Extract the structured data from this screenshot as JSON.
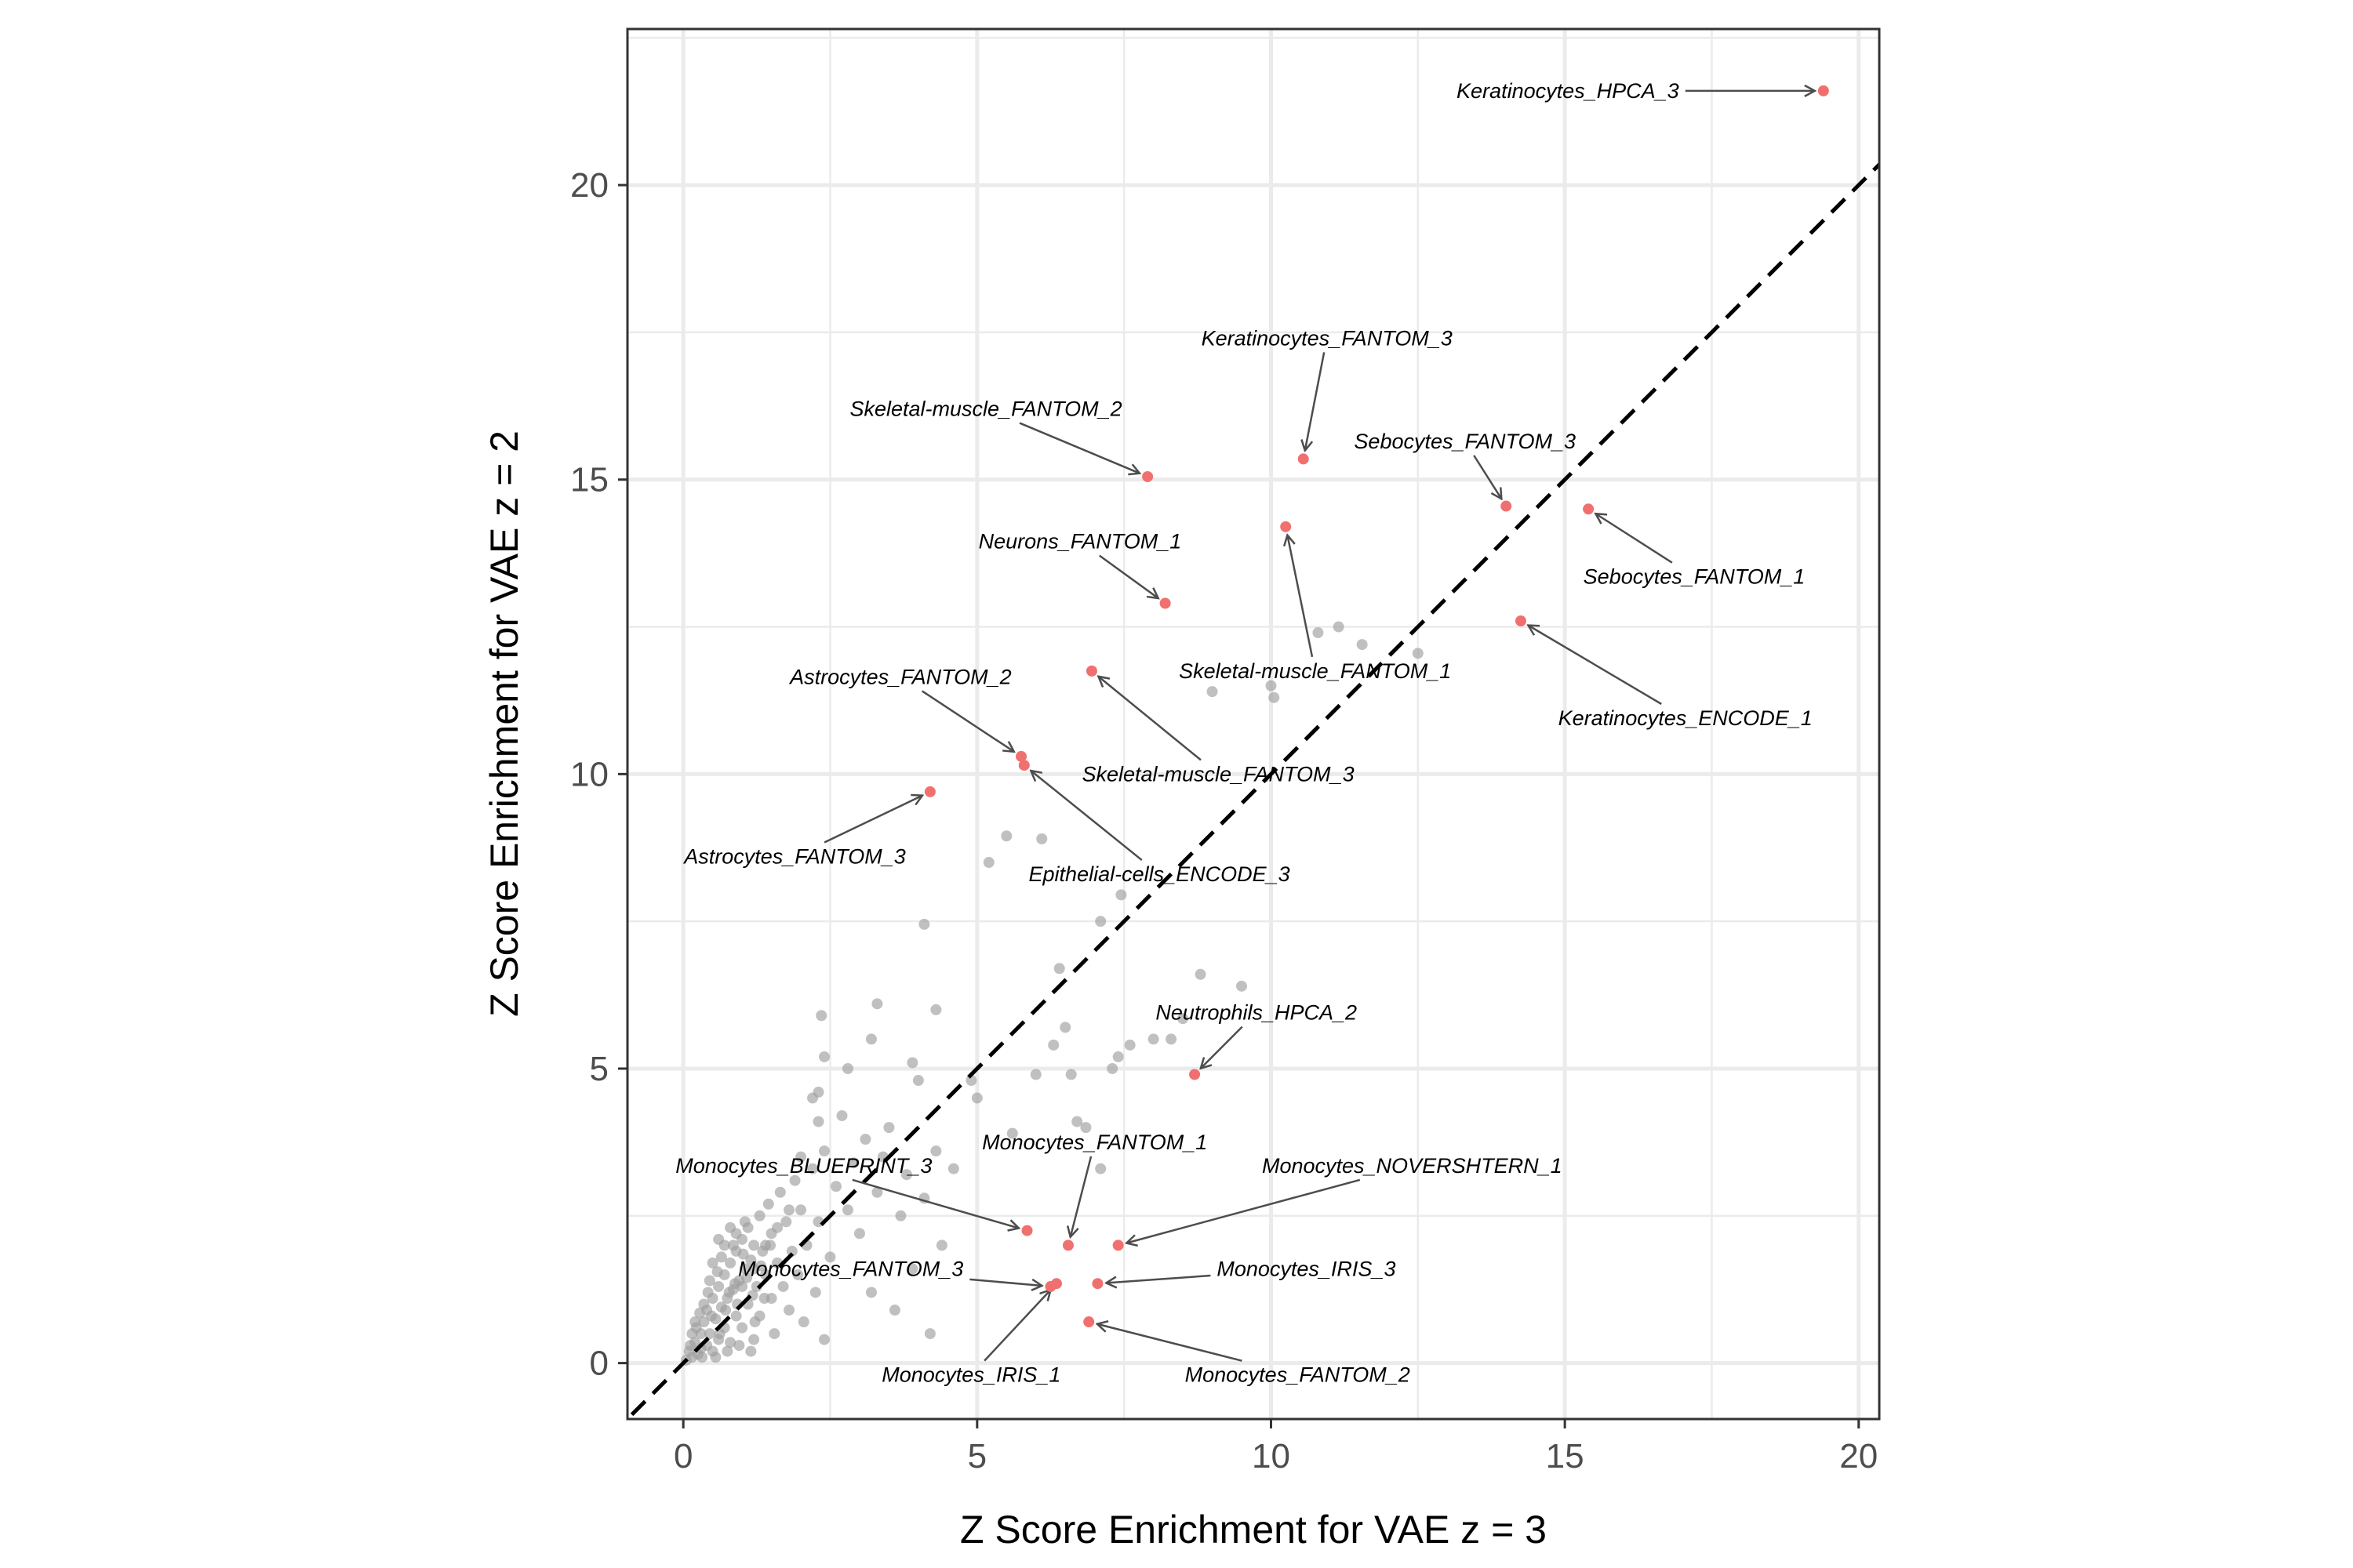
{
  "chart_data": {
    "type": "scatter",
    "title": "",
    "xlabel": "Z Score Enrichment for VAE z = 3",
    "ylabel": "Z Score Enrichment for VAE z = 2",
    "xlim": [
      -0.95,
      20.35
    ],
    "ylim": [
      -0.95,
      22.65
    ],
    "xticks": [
      0,
      5,
      10,
      15,
      20
    ],
    "yticks": [
      0,
      5,
      10,
      15,
      20
    ],
    "grid": true,
    "reference_line": {
      "slope": 1,
      "intercept": 0,
      "style": "dashed",
      "color": "#000000"
    },
    "colors": {
      "background_points": "#9e9e9e",
      "highlight_points": "#f07070",
      "arrow": "#4d4d4d",
      "panel_border": "#333333",
      "grid": "#ebebeb"
    },
    "labeled_points": [
      {
        "label": "Keratinocytes_HPCA_3",
        "x": 19.4,
        "y": 21.6,
        "lx": 15.05,
        "ly": 21.6
      },
      {
        "label": "Keratinocytes_FANTOM_3",
        "x": 10.55,
        "y": 15.35,
        "lx": 10.95,
        "ly": 17.4
      },
      {
        "label": "Skeletal-muscle_FANTOM_2",
        "x": 7.9,
        "y": 15.05,
        "lx": 5.15,
        "ly": 16.2
      },
      {
        "label": "Sebocytes_FANTOM_3",
        "x": 14.0,
        "y": 14.55,
        "lx": 13.3,
        "ly": 15.65
      },
      {
        "label": "Sebocytes_FANTOM_1",
        "x": 15.4,
        "y": 14.5,
        "lx": 17.2,
        "ly": 13.35
      },
      {
        "label": "Skeletal-muscle_FANTOM_1",
        "x": 10.25,
        "y": 14.2,
        "lx": 10.75,
        "ly": 11.75
      },
      {
        "label": "Neurons_FANTOM_1",
        "x": 8.2,
        "y": 12.9,
        "lx": 6.75,
        "ly": 13.95
      },
      {
        "label": "Keratinocytes_ENCODE_1",
        "x": 14.25,
        "y": 12.6,
        "lx": 17.05,
        "ly": 10.95
      },
      {
        "label": "Skeletal-muscle_FANTOM_3",
        "x": 6.95,
        "y": 11.75,
        "lx": 9.1,
        "ly": 10.0
      },
      {
        "label": "Astrocytes_FANTOM_2",
        "x": 5.75,
        "y": 10.3,
        "lx": 3.7,
        "ly": 11.65
      },
      {
        "label": "Epithelial-cells_ENCODE_3",
        "x": 5.8,
        "y": 10.15,
        "lx": 8.1,
        "ly": 8.3
      },
      {
        "label": "Astrocytes_FANTOM_3",
        "x": 4.2,
        "y": 9.7,
        "lx": 1.9,
        "ly": 8.6
      },
      {
        "label": "Neutrophils_HPCA_2",
        "x": 8.7,
        "y": 4.9,
        "lx": 9.75,
        "ly": 5.95
      },
      {
        "label": "Monocytes_BLUEPRINT_3",
        "x": 5.85,
        "y": 2.25,
        "lx": 2.05,
        "ly": 3.35
      },
      {
        "label": "Monocytes_FANTOM_1",
        "x": 6.55,
        "y": 2.0,
        "lx": 7.0,
        "ly": 3.75
      },
      {
        "label": "Monocytes_NOVERSHTERN_1",
        "x": 7.4,
        "y": 2.0,
        "lx": 12.4,
        "ly": 3.35
      },
      {
        "label": "Monocytes_FANTOM_3",
        "x": 6.25,
        "y": 1.3,
        "lx": 2.85,
        "ly": 1.6
      },
      {
        "label": "Monocytes_IRIS_3",
        "x": 7.05,
        "y": 1.35,
        "lx": 10.6,
        "ly": 1.6
      },
      {
        "label": "Monocytes_IRIS_1",
        "x": 6.35,
        "y": 1.35,
        "lx": 4.9,
        "ly": -0.2
      },
      {
        "label": "Monocytes_FANTOM_2",
        "x": 6.9,
        "y": 0.7,
        "lx": 10.45,
        "ly": -0.2
      }
    ],
    "background_points": [
      [
        0.05,
        0.05
      ],
      [
        0.1,
        0.2
      ],
      [
        0.15,
        0.1
      ],
      [
        0.2,
        0.35
      ],
      [
        0.25,
        0.15
      ],
      [
        0.3,
        0.5
      ],
      [
        0.3,
        0.25
      ],
      [
        0.35,
        0.7
      ],
      [
        0.4,
        0.3
      ],
      [
        0.4,
        0.9
      ],
      [
        0.45,
        0.5
      ],
      [
        0.5,
        1.1
      ],
      [
        0.5,
        0.2
      ],
      [
        0.55,
        0.75
      ],
      [
        0.6,
        1.3
      ],
      [
        0.6,
        0.4
      ],
      [
        0.65,
        0.95
      ],
      [
        0.7,
        1.5
      ],
      [
        0.7,
        0.6
      ],
      [
        0.75,
        1.1
      ],
      [
        0.8,
        1.7
      ],
      [
        0.8,
        0.35
      ],
      [
        0.85,
        1.25
      ],
      [
        0.9,
        1.9
      ],
      [
        0.9,
        0.8
      ],
      [
        0.95,
        1.4
      ],
      [
        1.0,
        2.1
      ],
      [
        1.0,
        0.6
      ],
      [
        1.05,
        1.6
      ],
      [
        1.1,
        2.3
      ],
      [
        1.1,
        1.0
      ],
      [
        1.15,
        1.75
      ],
      [
        1.2,
        0.4
      ],
      [
        1.2,
        2.0
      ],
      [
        1.25,
        1.3
      ],
      [
        1.3,
        2.5
      ],
      [
        1.3,
        0.8
      ],
      [
        1.35,
        1.9
      ],
      [
        1.4,
        1.5
      ],
      [
        1.45,
        2.7
      ],
      [
        1.5,
        1.1
      ],
      [
        1.5,
        2.2
      ],
      [
        1.55,
        0.5
      ],
      [
        1.6,
        1.7
      ],
      [
        1.65,
        2.9
      ],
      [
        1.7,
        1.3
      ],
      [
        1.75,
        2.4
      ],
      [
        1.8,
        0.9
      ],
      [
        1.85,
        1.9
      ],
      [
        1.9,
        3.1
      ],
      [
        1.95,
        1.5
      ],
      [
        2.0,
        2.6
      ],
      [
        2.05,
        0.7
      ],
      [
        2.1,
        2.0
      ],
      [
        2.2,
        3.3
      ],
      [
        2.25,
        1.2
      ],
      [
        2.3,
        2.4
      ],
      [
        2.4,
        0.4
      ],
      [
        2.4,
        3.6
      ],
      [
        2.5,
        1.8
      ],
      [
        0.2,
        0.7
      ],
      [
        0.35,
        1.0
      ],
      [
        0.45,
        1.4
      ],
      [
        0.55,
        0.1
      ],
      [
        0.65,
        1.8
      ],
      [
        0.75,
        0.2
      ],
      [
        0.85,
        2.0
      ],
      [
        0.95,
        0.3
      ],
      [
        1.05,
        2.4
      ],
      [
        1.15,
        0.2
      ],
      [
        0.15,
        0.5
      ],
      [
        0.28,
        0.85
      ],
      [
        0.42,
        1.2
      ],
      [
        0.58,
        1.55
      ],
      [
        0.72,
        0.9
      ],
      [
        0.88,
        1.35
      ],
      [
        1.02,
        1.85
      ],
      [
        1.18,
        1.15
      ],
      [
        1.32,
        1.65
      ],
      [
        1.48,
        2.0
      ],
      [
        0.12,
        0.3
      ],
      [
        0.22,
        0.6
      ],
      [
        0.32,
        0.1
      ],
      [
        0.48,
        0.8
      ],
      [
        0.62,
        0.5
      ],
      [
        0.78,
        1.2
      ],
      [
        0.92,
        1.0
      ],
      [
        1.08,
        1.45
      ],
      [
        1.22,
        0.7
      ],
      [
        1.38,
        1.1
      ],
      [
        0.6,
        2.1
      ],
      [
        0.8,
        2.3
      ],
      [
        1.0,
        1.3
      ],
      [
        1.2,
        1.6
      ],
      [
        1.4,
        2.0
      ],
      [
        1.6,
        2.3
      ],
      [
        1.8,
        2.6
      ],
      [
        0.5,
        1.7
      ],
      [
        0.7,
        2.0
      ],
      [
        0.9,
        2.2
      ],
      [
        2.3,
        4.1
      ],
      [
        2.0,
        3.5
      ],
      [
        2.6,
        3.0
      ],
      [
        2.8,
        2.6
      ],
      [
        2.9,
        3.4
      ],
      [
        3.0,
        2.2
      ],
      [
        3.1,
        3.8
      ],
      [
        3.2,
        1.2
      ],
      [
        3.3,
        2.9
      ],
      [
        3.5,
        4.0
      ],
      [
        3.6,
        0.9
      ],
      [
        3.7,
        2.5
      ],
      [
        3.8,
        3.2
      ],
      [
        3.9,
        1.6
      ],
      [
        4.1,
        2.8
      ],
      [
        4.2,
        0.5
      ],
      [
        4.3,
        3.6
      ],
      [
        4.4,
        2.0
      ],
      [
        4.6,
        3.3
      ],
      [
        3.4,
        3.5
      ],
      [
        2.7,
        4.2
      ],
      [
        2.2,
        4.5
      ],
      [
        2.35,
        5.9
      ],
      [
        2.4,
        5.2
      ],
      [
        2.3,
        4.6
      ],
      [
        3.3,
        6.1
      ],
      [
        3.2,
        5.5
      ],
      [
        2.8,
        5.0
      ],
      [
        3.9,
        5.1
      ],
      [
        4.0,
        4.8
      ],
      [
        4.3,
        6.0
      ],
      [
        4.9,
        4.8
      ],
      [
        5.0,
        4.5
      ],
      [
        5.6,
        3.9
      ],
      [
        6.3,
        5.4
      ],
      [
        6.0,
        4.9
      ],
      [
        6.5,
        5.7
      ],
      [
        6.6,
        4.9
      ],
      [
        6.7,
        4.1
      ],
      [
        6.85,
        4.0
      ],
      [
        7.1,
        3.3
      ],
      [
        7.3,
        5.0
      ],
      [
        7.4,
        5.2
      ],
      [
        7.6,
        5.4
      ],
      [
        8.0,
        5.5
      ],
      [
        8.3,
        5.5
      ],
      [
        8.5,
        5.85
      ],
      [
        8.8,
        6.6
      ],
      [
        9.5,
        6.4
      ],
      [
        5.2,
        8.5
      ],
      [
        5.5,
        8.95
      ],
      [
        6.1,
        8.9
      ],
      [
        4.1,
        7.45
      ],
      [
        6.4,
        6.7
      ],
      [
        7.1,
        7.5
      ],
      [
        7.45,
        7.95
      ],
      [
        9.0,
        11.4
      ],
      [
        10.0,
        11.5
      ],
      [
        10.05,
        11.3
      ],
      [
        10.8,
        12.4
      ],
      [
        11.15,
        12.5
      ],
      [
        11.55,
        12.2
      ],
      [
        12.5,
        12.05
      ]
    ]
  }
}
